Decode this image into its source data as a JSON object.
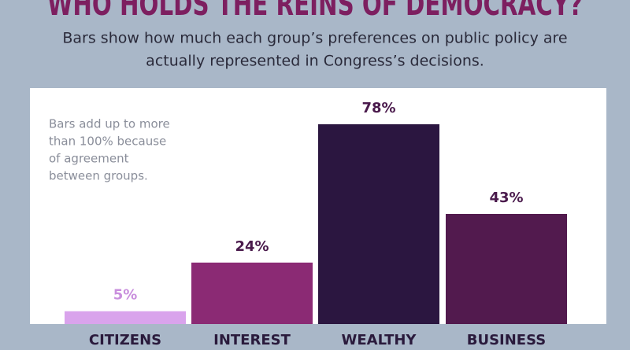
{
  "chart_data": {
    "type": "bar",
    "title": "WHO HOLDS THE REINS OF DEMOCRACY?",
    "subtitle": [
      "Bars show how much each group’s preferences on public policy are",
      "actually represented in Congress’s decisions."
    ],
    "annotation": [
      "Bars add up to more",
      "than 100% because",
      "of agreement",
      "between groups."
    ],
    "categories": [
      "CITIZENS",
      "INTEREST",
      "WEALTHY",
      "BUSINESS"
    ],
    "values": [
      5,
      24,
      78,
      43
    ],
    "value_labels": [
      "5%",
      "24%",
      "78%",
      "43%"
    ],
    "colors": [
      "#d9a3ec",
      "#8b2a74",
      "#2b1640",
      "#521a4e"
    ]
  }
}
